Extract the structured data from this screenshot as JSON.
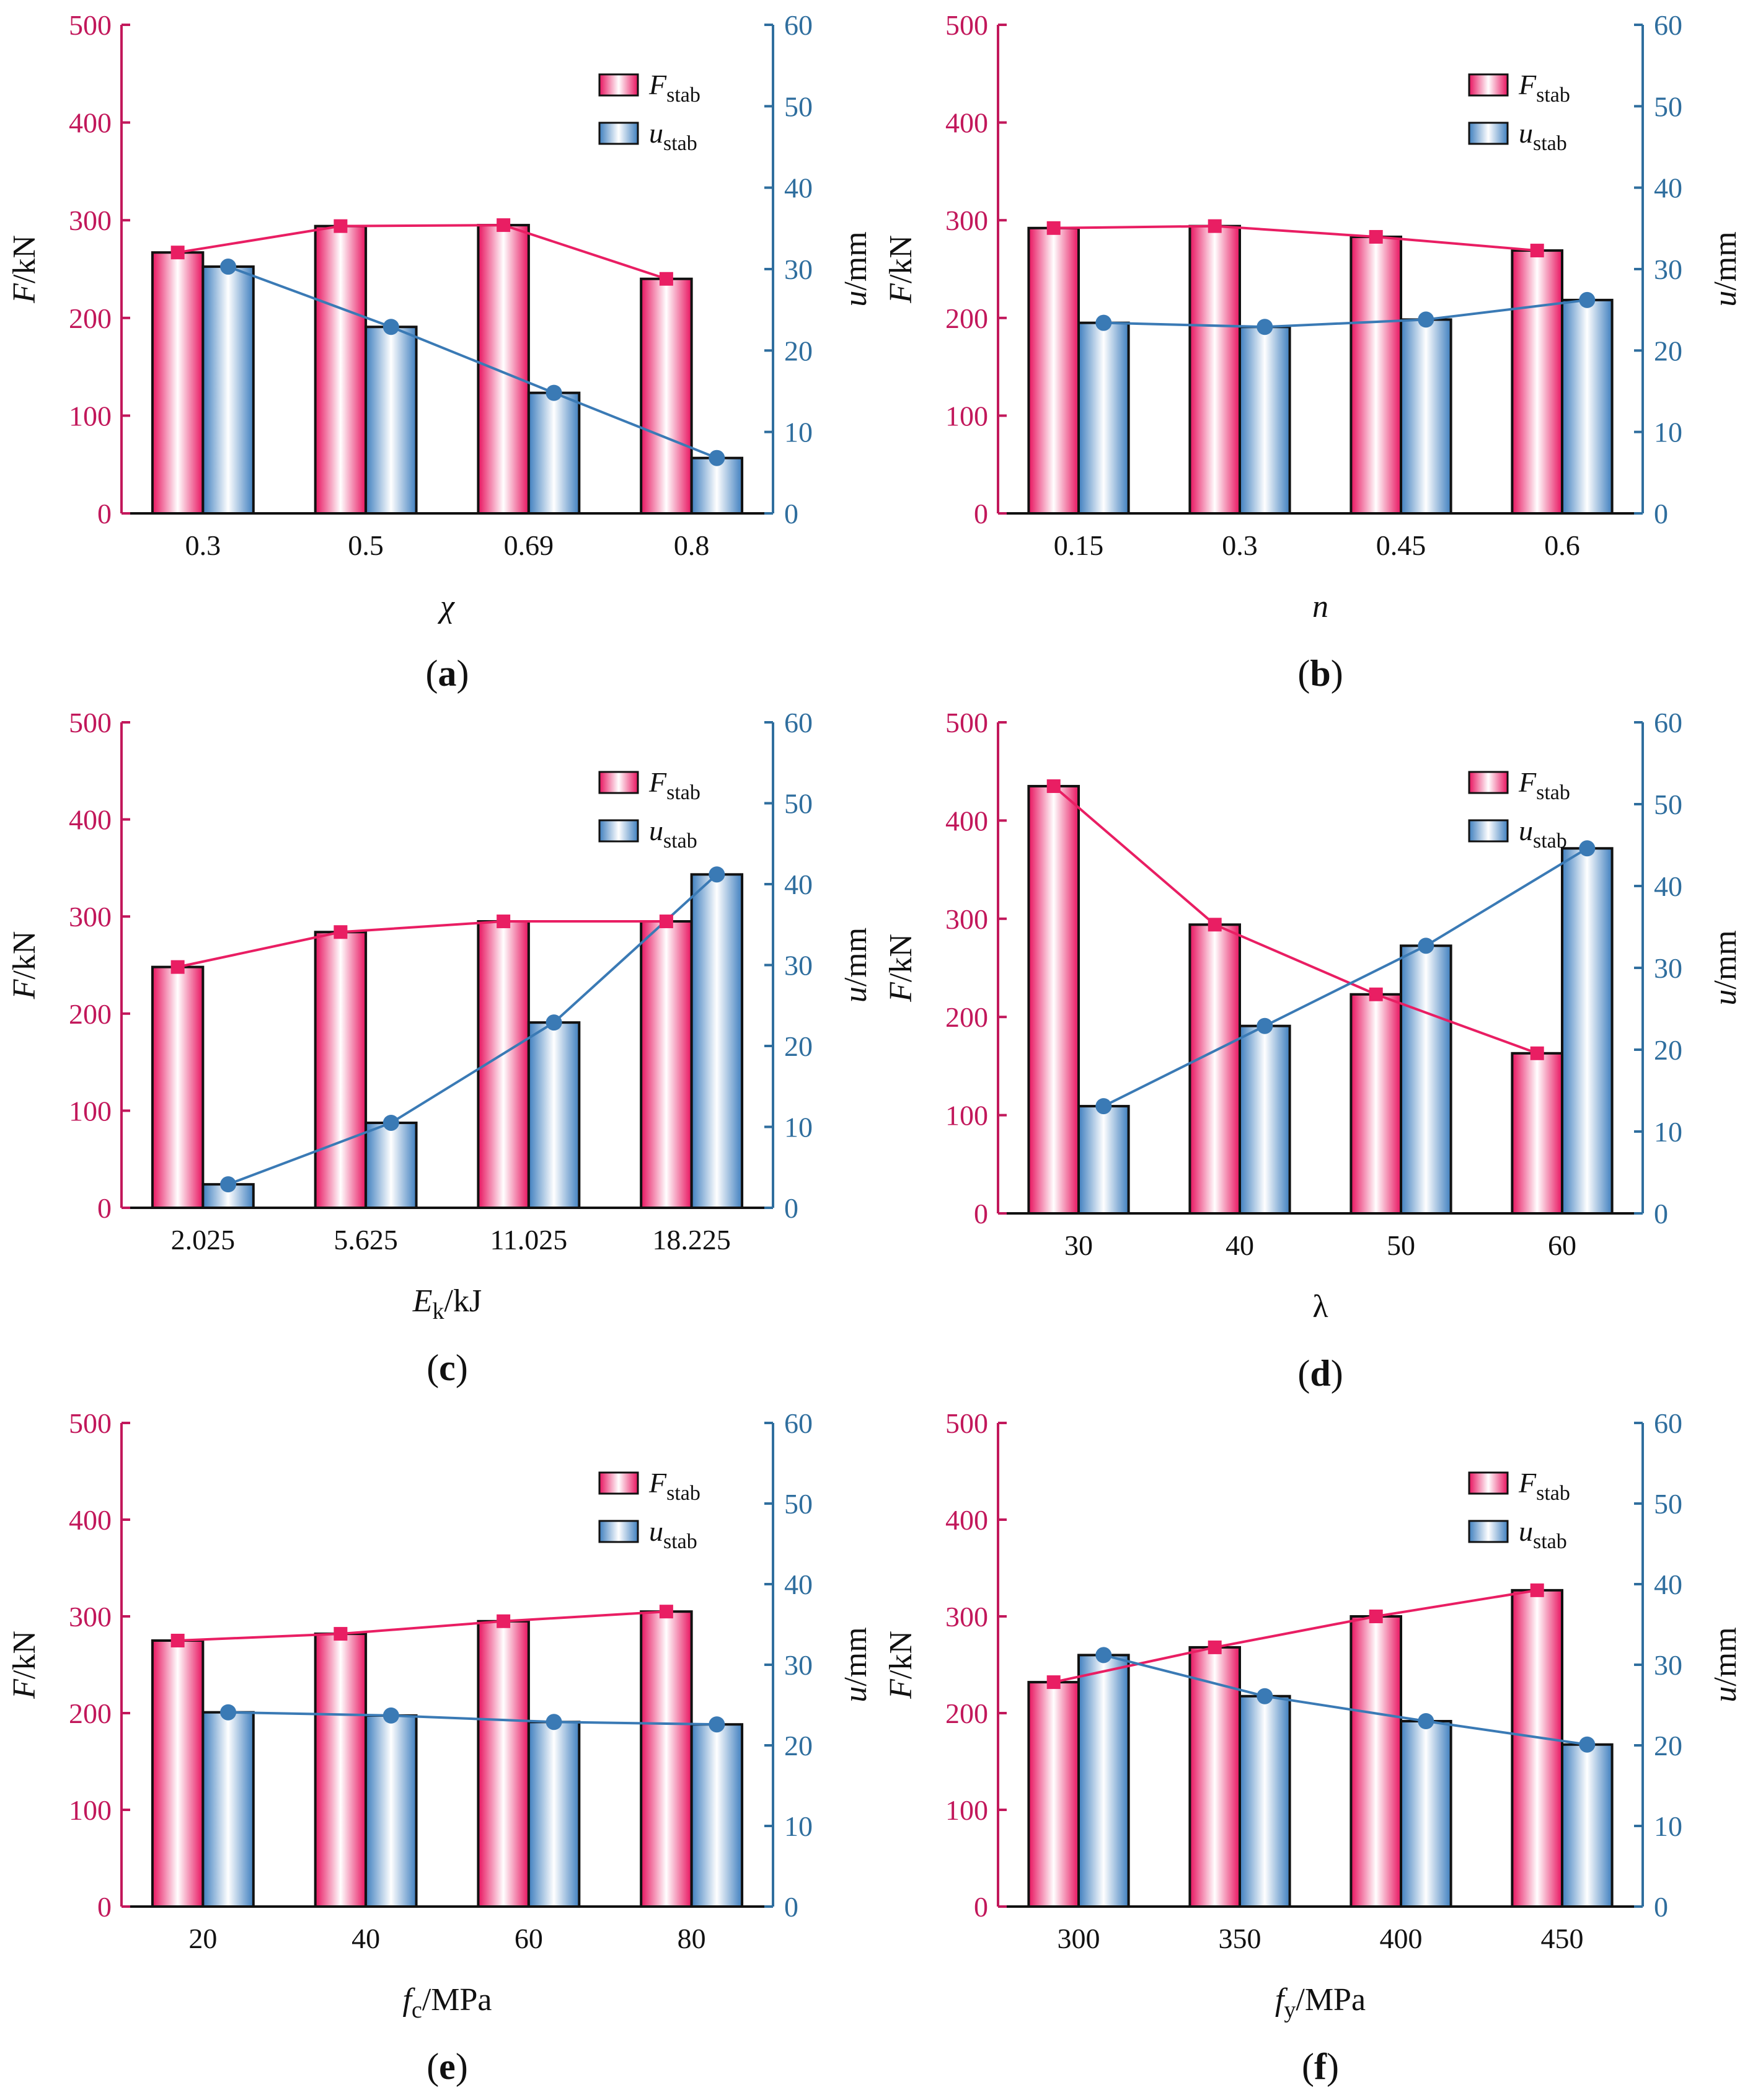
{
  "colors": {
    "F": "#e91e63",
    "u": "#3a7ab5",
    "F_axis": "#c2185b",
    "u_axis": "#2f6e9e"
  },
  "chart_data": [
    {
      "panel": "(a)",
      "panel_letter": "a",
      "type": "bar",
      "xlabel": "χ",
      "ylabel_left": "F/kN",
      "ylabel_right": "u/mm",
      "ylim_left": [
        0,
        500
      ],
      "yticks_left": [
        0,
        100,
        200,
        300,
        400,
        500
      ],
      "ylim_right": [
        0,
        60
      ],
      "yticks_right": [
        0,
        10,
        20,
        30,
        40,
        50,
        60
      ],
      "legend_position": "top-right",
      "categories": [
        "0.3",
        "0.5",
        "0.69",
        "0.8"
      ],
      "series": [
        {
          "name": "Fstab",
          "axis": "left",
          "values": [
            267,
            294,
            295,
            240
          ]
        },
        {
          "name": "ustab",
          "axis": "right",
          "values": [
            30.3,
            22.9,
            14.8,
            6.8
          ]
        }
      ]
    },
    {
      "panel": "(b)",
      "panel_letter": "b",
      "type": "bar",
      "xlabel": "n",
      "ylabel_left": "F/kN",
      "ylabel_right": "u/mm",
      "ylim_left": [
        0,
        500
      ],
      "yticks_left": [
        0,
        100,
        200,
        300,
        400,
        500
      ],
      "ylim_right": [
        0,
        60
      ],
      "yticks_right": [
        0,
        10,
        20,
        30,
        40,
        50,
        60
      ],
      "legend_position": "top-right",
      "categories": [
        "0.15",
        "0.3",
        "0.45",
        "0.6"
      ],
      "series": [
        {
          "name": "Fstab",
          "axis": "left",
          "values": [
            292,
            294,
            283,
            269
          ]
        },
        {
          "name": "ustab",
          "axis": "right",
          "values": [
            23.4,
            22.9,
            23.8,
            26.2
          ]
        }
      ]
    },
    {
      "panel": "(c)",
      "panel_letter": "c",
      "type": "bar",
      "xlabel": "Ek/kJ",
      "ylabel_left": "F/kN",
      "ylabel_right": "u/mm",
      "ylim_left": [
        0,
        500
      ],
      "yticks_left": [
        0,
        100,
        200,
        300,
        400,
        500
      ],
      "ylim_right": [
        0,
        60
      ],
      "yticks_right": [
        0,
        10,
        20,
        30,
        40,
        50,
        60
      ],
      "legend_position": "top-right",
      "categories": [
        "2.025",
        "5.625",
        "11.025",
        "18.225"
      ],
      "series": [
        {
          "name": "Fstab",
          "axis": "left",
          "values": [
            248,
            284,
            295,
            295
          ]
        },
        {
          "name": "ustab",
          "axis": "right",
          "values": [
            2.9,
            10.5,
            22.9,
            41.2
          ]
        }
      ]
    },
    {
      "panel": "(d)",
      "panel_letter": "d",
      "type": "bar",
      "xlabel": "λ",
      "ylabel_left": "F/kN",
      "ylabel_right": "u/mm",
      "ylim_left": [
        0,
        500
      ],
      "yticks_left": [
        0,
        100,
        200,
        300,
        400,
        500
      ],
      "ylim_right": [
        0,
        60
      ],
      "yticks_right": [
        0,
        10,
        20,
        30,
        40,
        50,
        60
      ],
      "legend_position": "top-right",
      "categories": [
        "30",
        "40",
        "50",
        "60"
      ],
      "series": [
        {
          "name": "Fstab",
          "axis": "left",
          "values": [
            435,
            294,
            223,
            163
          ]
        },
        {
          "name": "ustab",
          "axis": "right",
          "values": [
            13.1,
            22.9,
            32.7,
            44.6
          ]
        }
      ]
    },
    {
      "panel": "(e)",
      "panel_letter": "e",
      "type": "bar",
      "xlabel": "fc/MPa",
      "ylabel_left": "F/kN",
      "ylabel_right": "u/mm",
      "ylim_left": [
        0,
        500
      ],
      "yticks_left": [
        0,
        100,
        200,
        300,
        400,
        500
      ],
      "ylim_right": [
        0,
        60
      ],
      "yticks_right": [
        0,
        10,
        20,
        30,
        40,
        50,
        60
      ],
      "legend_position": "top-right",
      "categories": [
        "20",
        "40",
        "60",
        "80"
      ],
      "series": [
        {
          "name": "Fstab",
          "axis": "left",
          "values": [
            275,
            282,
            295,
            305
          ]
        },
        {
          "name": "ustab",
          "axis": "right",
          "values": [
            24.1,
            23.7,
            22.9,
            22.6
          ]
        }
      ]
    },
    {
      "panel": "(f)",
      "panel_letter": "f",
      "type": "bar",
      "xlabel": "fy/MPa",
      "ylabel_left": "F/kN",
      "ylabel_right": "u/mm",
      "ylim_left": [
        0,
        500
      ],
      "yticks_left": [
        0,
        100,
        200,
        300,
        400,
        500
      ],
      "ylim_right": [
        0,
        60
      ],
      "yticks_right": [
        0,
        10,
        20,
        30,
        40,
        50,
        60
      ],
      "legend_position": "top-right",
      "categories": [
        "300",
        "350",
        "400",
        "450"
      ],
      "series": [
        {
          "name": "Fstab",
          "axis": "left",
          "values": [
            232,
            268,
            300,
            327
          ]
        },
        {
          "name": "ustab",
          "axis": "right",
          "values": [
            31.2,
            26.1,
            23.0,
            20.1
          ]
        }
      ]
    }
  ]
}
